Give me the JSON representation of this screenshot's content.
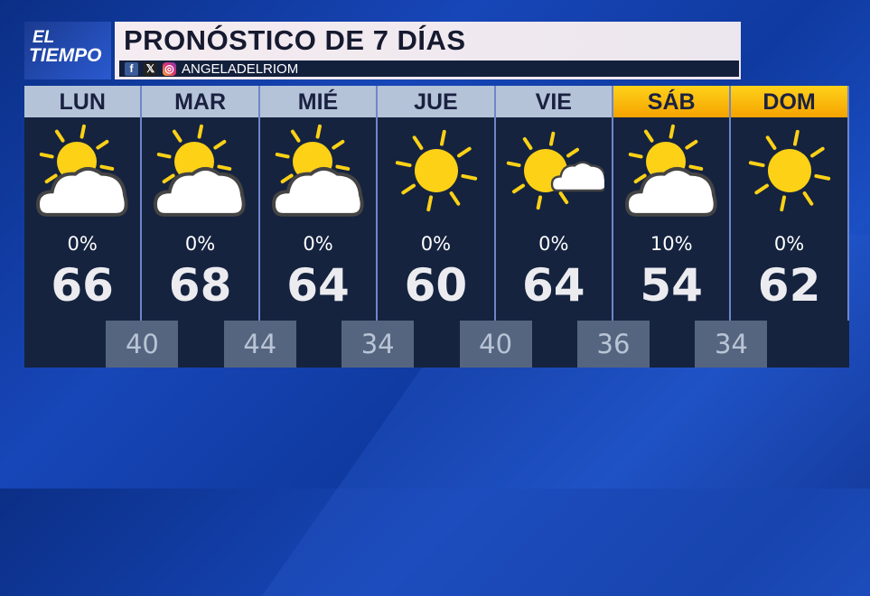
{
  "logo": {
    "line1": "EL",
    "line2": "TIEMPO"
  },
  "header": {
    "title": "PRONÓSTICO DE 7 DÍAS",
    "handle": "ANGELADELRIOM",
    "social_icons": [
      "facebook-icon",
      "x-icon",
      "instagram-icon"
    ]
  },
  "colors": {
    "weekday_header": "#b4c3d8",
    "weekend_header": "#ffc20e",
    "panel": "#15233f",
    "sun": "#fcd116"
  },
  "days": [
    {
      "label": "LUN",
      "icon": "partly-cloudy",
      "precip": "0%",
      "high": "66",
      "weekend": false
    },
    {
      "label": "MAR",
      "icon": "partly-cloudy",
      "precip": "0%",
      "high": "68",
      "weekend": false
    },
    {
      "label": "MIÉ",
      "icon": "partly-cloudy",
      "precip": "0%",
      "high": "64",
      "weekend": false
    },
    {
      "label": "JUE",
      "icon": "sunny",
      "precip": "0%",
      "high": "60",
      "weekend": false
    },
    {
      "label": "VIE",
      "icon": "mostly-sunny",
      "precip": "0%",
      "high": "64",
      "weekend": false
    },
    {
      "label": "SÁB",
      "icon": "partly-cloudy",
      "precip": "10%",
      "high": "54",
      "weekend": true
    },
    {
      "label": "DOM",
      "icon": "sunny",
      "precip": "0%",
      "high": "62",
      "weekend": true
    }
  ],
  "lows": [
    "40",
    "44",
    "34",
    "40",
    "36",
    "34"
  ]
}
